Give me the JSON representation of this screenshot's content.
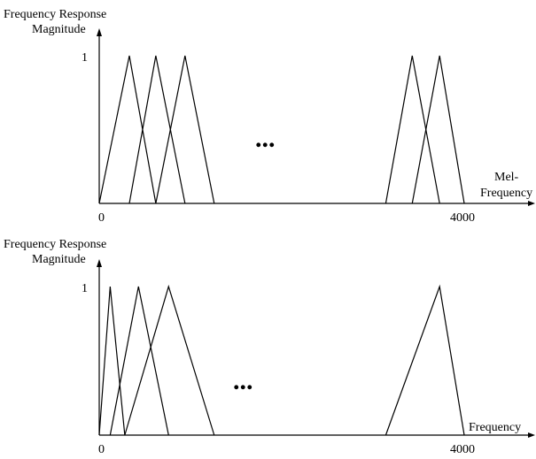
{
  "figure": {
    "panels": [
      {
        "id": "mel",
        "y_label_line1": "Frequency Response",
        "y_label_line2": "Magnitude",
        "y_tick": "1",
        "x_label_line1": "Mel-",
        "x_label_line2": "Frequency",
        "x_tick_start": "0",
        "x_tick_end": "4000",
        "ellipsis": "...",
        "filter_bands": [
          [
            0,
            330,
            620
          ],
          [
            330,
            620,
            940
          ],
          [
            620,
            940,
            1260
          ],
          [
            3140,
            3430,
            3730
          ],
          [
            3430,
            3730,
            4000
          ]
        ]
      },
      {
        "id": "linear",
        "y_label_line1": "Frequency Response",
        "y_label_line2": "Magnitude",
        "y_tick": "1",
        "x_label_line1": "Frequency",
        "x_tick_start": "0",
        "x_tick_end": "4000",
        "ellipsis": "...",
        "filter_bands": [
          [
            0,
            120,
            280
          ],
          [
            120,
            430,
            760
          ],
          [
            280,
            760,
            1260
          ],
          [
            3140,
            3730,
            4000
          ]
        ]
      }
    ]
  }
}
